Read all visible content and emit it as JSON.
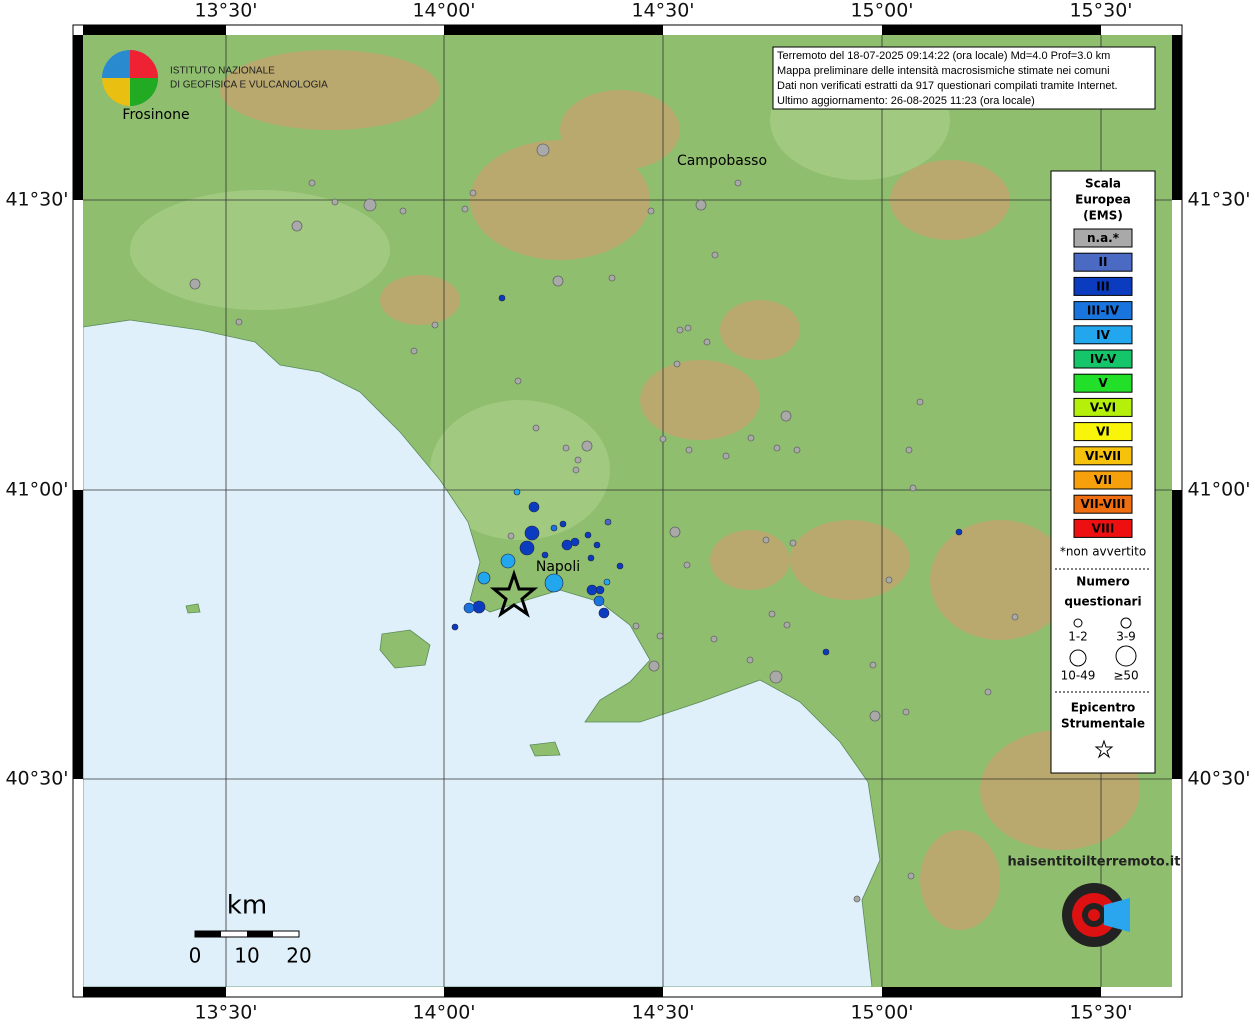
{
  "header": {
    "lines": [
      "Terremoto del 18-07-2025 09:14:22 (ora locale) Md=4.0 Prof=3.0 km",
      "Mappa preliminare delle intensità macrosismiche stimate nei comuni",
      "Dati non verificati estratti da 917 questionari compilati tramite Internet.",
      "Ultimo aggiornamento: 26-08-2025 11:23 (ora locale)"
    ]
  },
  "logo": {
    "line1": "ISTITUTO NAZIONALE",
    "line2": "DI GEOFISICA E VULCANOLOGIA"
  },
  "axes": {
    "lon": [
      "13°30'",
      "14°00'",
      "14°30'",
      "15°00'",
      "15°30'"
    ],
    "lat": [
      "41°30'",
      "41°00'",
      "40°30'"
    ]
  },
  "cities": [
    "Frosinone",
    "Campobasso",
    "Napoli"
  ],
  "legend": {
    "title": [
      "Scala",
      "Europea",
      "(EMS)"
    ],
    "items": [
      {
        "label": "n.a.*",
        "color": "#a9a9a9"
      },
      {
        "label": "II",
        "color": "#4a6ac4"
      },
      {
        "label": "III",
        "color": "#0b3cc0"
      },
      {
        "label": "III-IV",
        "color": "#1a74de"
      },
      {
        "label": "IV",
        "color": "#22a6ee"
      },
      {
        "label": "IV-V",
        "color": "#14c56a"
      },
      {
        "label": "V",
        "color": "#22e02a"
      },
      {
        "label": "V-VI",
        "color": "#b4f00a"
      },
      {
        "label": "VI",
        "color": "#f8f40a"
      },
      {
        "label": "VI-VII",
        "color": "#f6c20c"
      },
      {
        "label": "VII",
        "color": "#f6a00c"
      },
      {
        "label": "VII-VIII",
        "color": "#ef6e10"
      },
      {
        "label": "VIII",
        "color": "#ee1010"
      }
    ],
    "note": "*non avvertito",
    "size_title": [
      "Numero",
      "questionari"
    ],
    "sizes": [
      "1-2",
      "3-9",
      "10-49",
      "≥50"
    ],
    "epi_title": [
      "Epicentro",
      "Strumentale"
    ]
  },
  "scale": {
    "unit": "km",
    "labels": [
      "0",
      "10",
      "20"
    ]
  },
  "site": "haisentitoilterremoto.it"
}
